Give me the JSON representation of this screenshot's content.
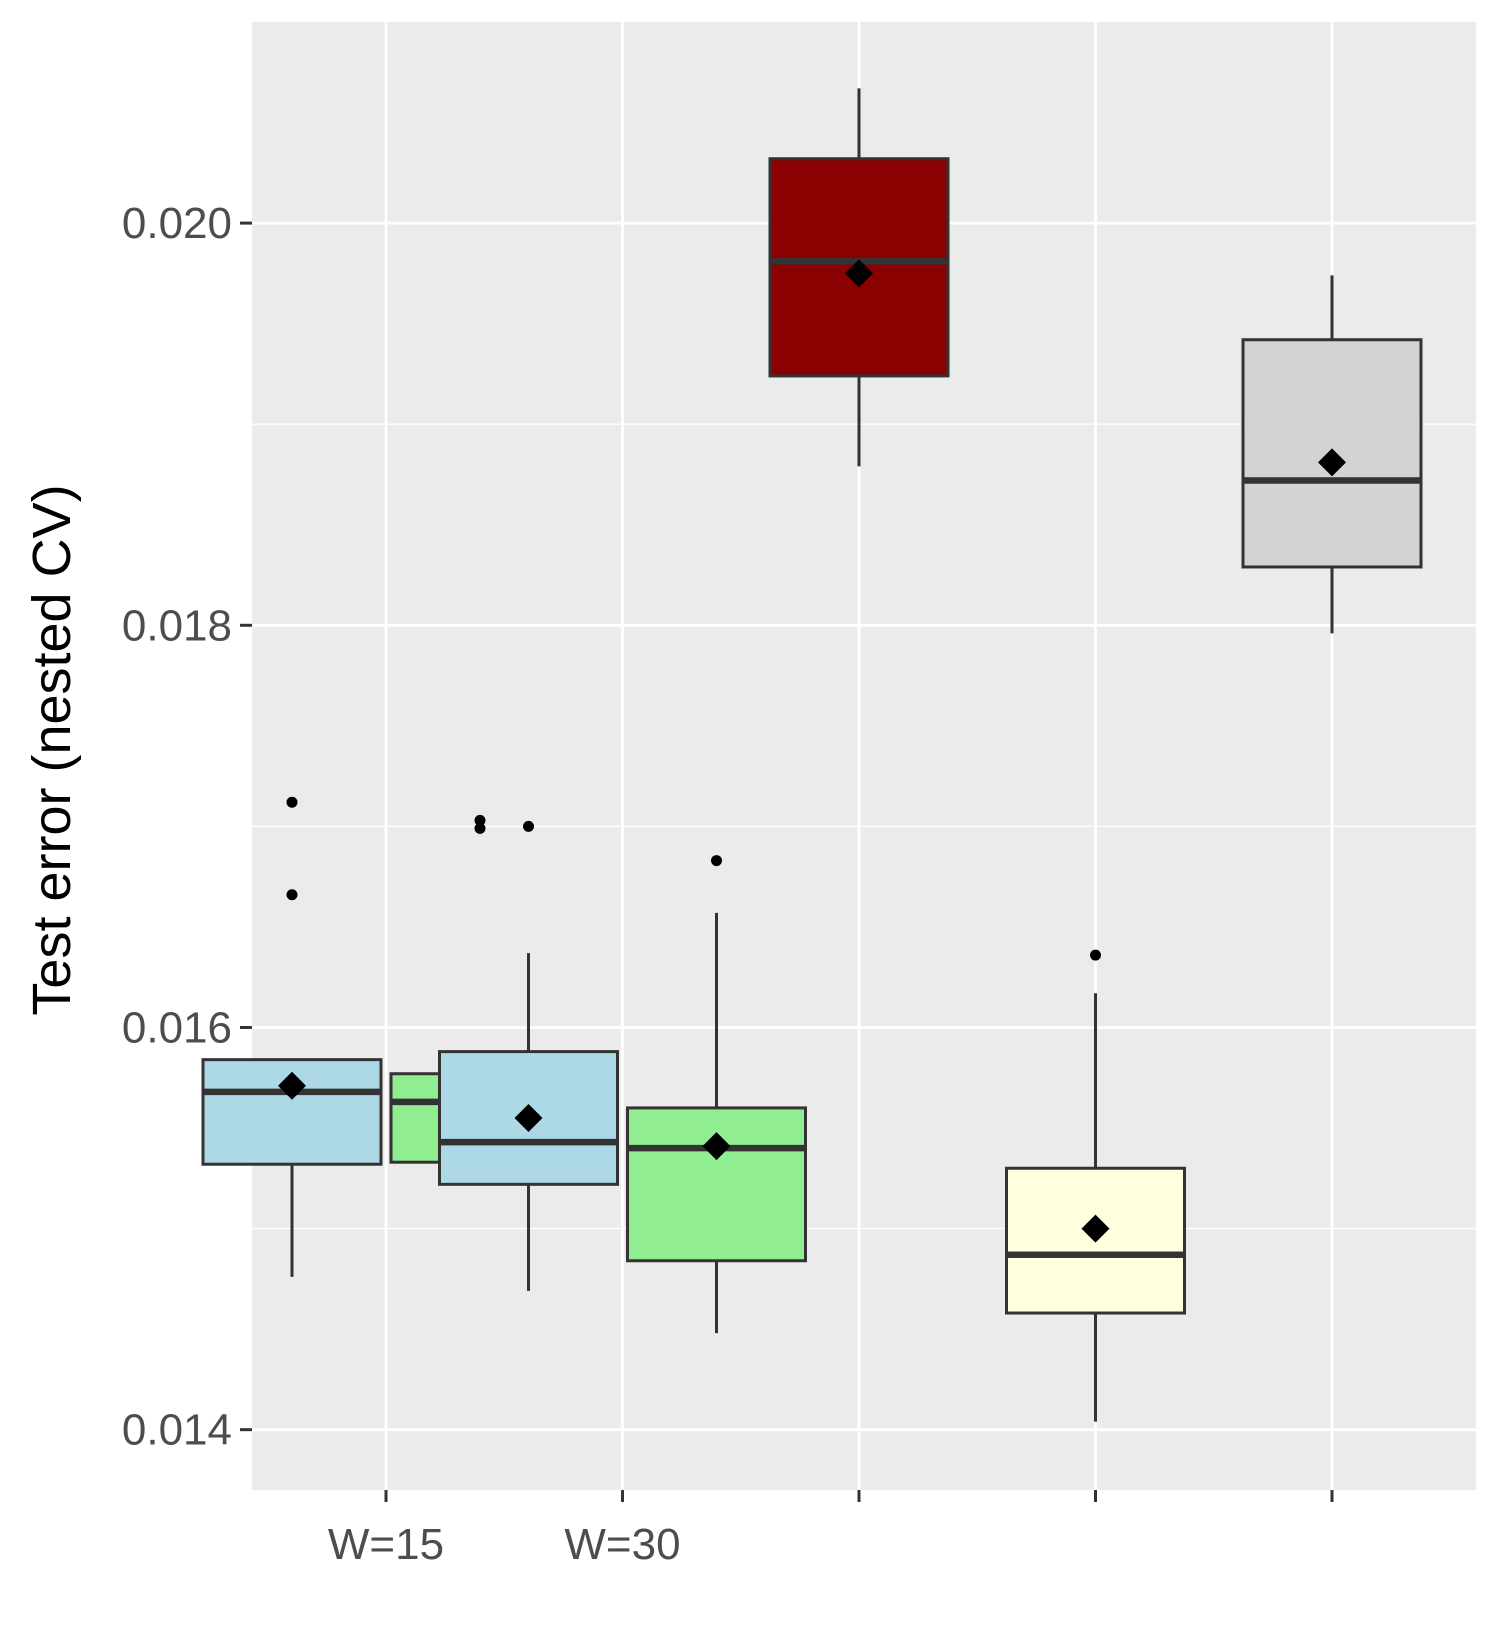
{
  "chart_data": {
    "type": "boxplot",
    "ylabel": "Test error (nested CV)",
    "xlabel": "",
    "ylim": [
      0.0137,
      0.021
    ],
    "y_ticks": [
      0.014,
      0.016,
      0.018,
      0.02
    ],
    "y_tick_labels": [
      "0.014",
      "0.016",
      "0.018",
      "0.020"
    ],
    "y_minor_ticks": [
      0.015,
      0.017,
      0.019
    ],
    "x_ticks": [
      1,
      2,
      3,
      4,
      5
    ],
    "x_tick_labels": [
      "W=15",
      "W=30",
      "",
      "",
      ""
    ],
    "grid": true,
    "boxes": [
      {
        "x": 1,
        "offset": -0.4,
        "fill": "#add8e6",
        "whisker_low": 0.01476,
        "q1": 0.01532,
        "median": 0.01568,
        "q3": 0.01584,
        "whisker_high": 0.01584,
        "mean": 0.01571,
        "outliers": [
          0.01712,
          0.01666
        ]
      },
      {
        "x": 1,
        "offset": 0.4,
        "fill": "#90ee90",
        "whisker_low": 0.01522,
        "q1": 0.01533,
        "median": 0.01563,
        "q3": 0.01577,
        "whisker_high": 0.01577,
        "mean": 0.01577,
        "outliers": [
          0.01703,
          0.01699
        ]
      },
      {
        "x": 2,
        "offset": -0.4,
        "fill": "#add8e6",
        "whisker_low": 0.01469,
        "q1": 0.01522,
        "median": 0.01543,
        "q3": 0.01588,
        "whisker_high": 0.01637,
        "mean": 0.01555,
        "outliers": [
          0.017
        ]
      },
      {
        "x": 2,
        "offset": 0.4,
        "fill": "#90ee90",
        "whisker_low": 0.01448,
        "q1": 0.01484,
        "median": 0.0154,
        "q3": 0.0156,
        "whisker_high": 0.01657,
        "mean": 0.01541,
        "outliers": [
          0.01683
        ]
      },
      {
        "x": 3,
        "offset": 0,
        "fill": "#8b0000",
        "whisker_low": 0.01879,
        "q1": 0.01924,
        "median": 0.01981,
        "q3": 0.02032,
        "whisker_high": 0.02067,
        "mean": 0.01975,
        "outliers": []
      },
      {
        "x": 4,
        "offset": 0,
        "fill": "#ffffe0",
        "whisker_low": 0.01404,
        "q1": 0.01458,
        "median": 0.01487,
        "q3": 0.0153,
        "whisker_high": 0.01617,
        "mean": 0.015,
        "outliers": [
          0.01636
        ]
      },
      {
        "x": 5,
        "offset": 0,
        "fill": "#d3d3d3",
        "whisker_low": 0.01796,
        "q1": 0.01829,
        "median": 0.01872,
        "q3": 0.01942,
        "whisker_high": 0.01974,
        "mean": 0.01881,
        "outliers": []
      }
    ],
    "colors": {
      "panel": "#ebebeb",
      "grid": "#ffffff",
      "box_line": "#333333",
      "point": "#000000",
      "tick": "#333333"
    }
  }
}
